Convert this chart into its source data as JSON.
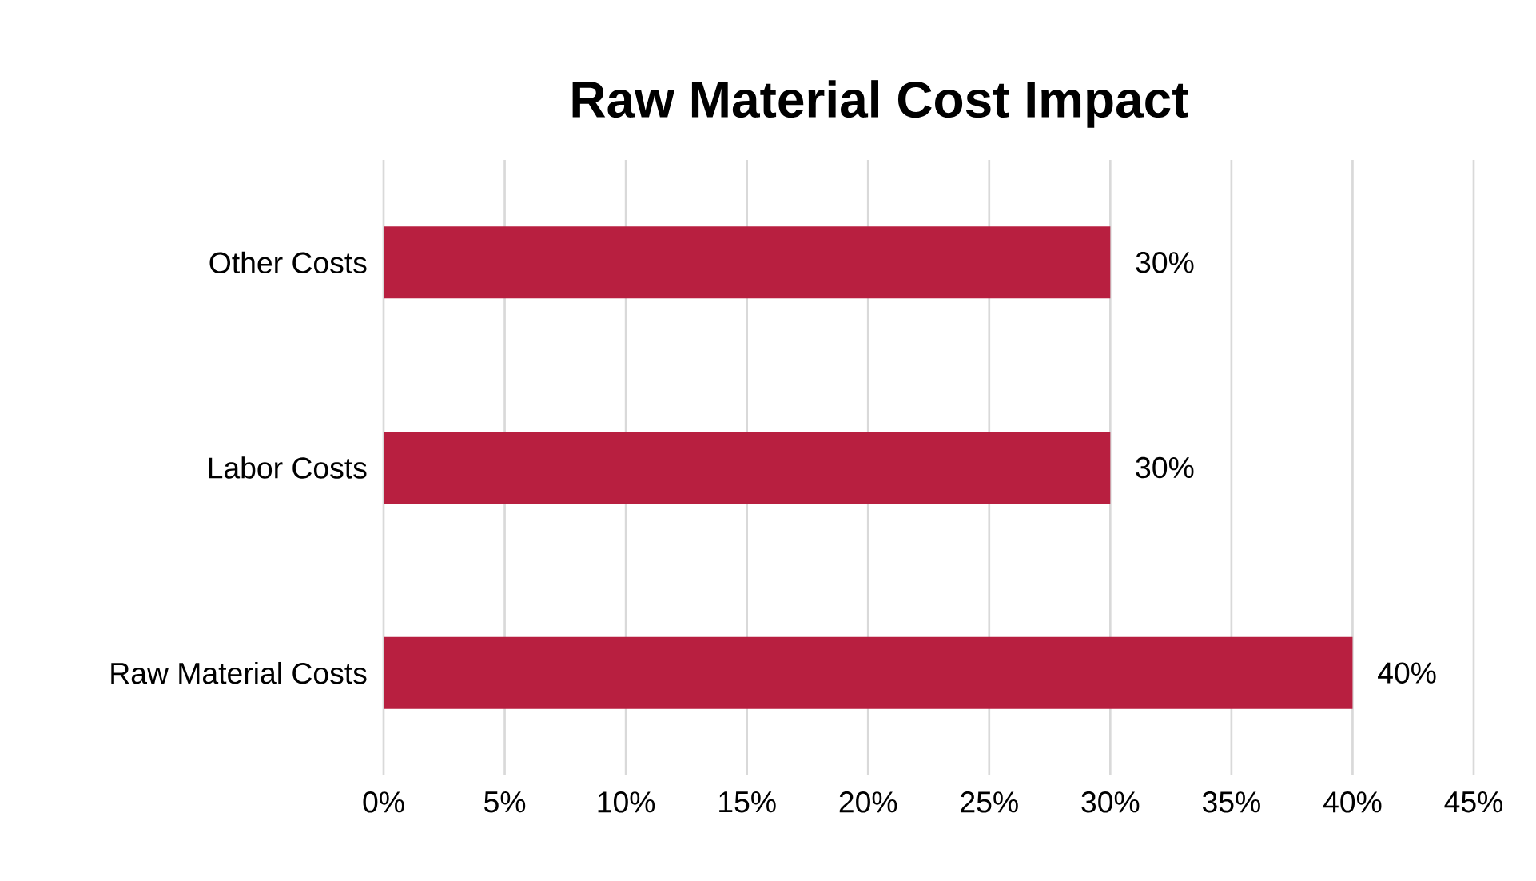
{
  "chart_data": {
    "type": "bar",
    "orientation": "horizontal",
    "title": "Raw Material Cost Impact",
    "categories": [
      "Other Costs",
      "Labor Costs",
      "Raw Material Costs"
    ],
    "values": [
      30,
      30,
      40
    ],
    "value_labels": [
      "30%",
      "30%",
      "40%"
    ],
    "color": "#b81f40",
    "xlim": [
      0,
      45
    ],
    "xticks": [
      {
        "value": 0,
        "label": "0%"
      },
      {
        "value": 5,
        "label": "5%"
      },
      {
        "value": 10,
        "label": "10%"
      },
      {
        "value": 15,
        "label": "15%"
      },
      {
        "value": 20,
        "label": "20%"
      },
      {
        "value": 25,
        "label": "25%"
      },
      {
        "value": 30,
        "label": "30%"
      },
      {
        "value": 35,
        "label": "35%"
      },
      {
        "value": 40,
        "label": "40%"
      },
      {
        "value": 45,
        "label": "45%"
      }
    ],
    "grid": "x"
  }
}
